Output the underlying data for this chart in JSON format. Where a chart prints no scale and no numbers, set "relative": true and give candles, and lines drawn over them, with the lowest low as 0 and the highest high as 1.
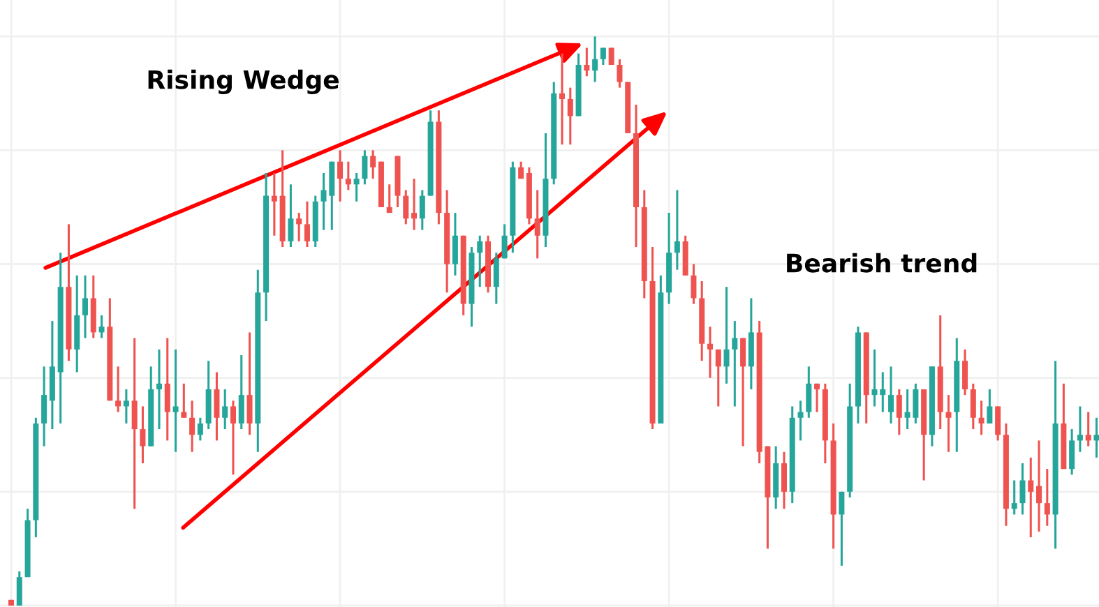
{
  "chart_data": {
    "type": "candlestick",
    "relative": true,
    "grid": true,
    "annotations": [
      "Rising Wedge",
      "Bearish trend"
    ],
    "categories": [
      null,
      null,
      null,
      null,
      null,
      null,
      null,
      null,
      null,
      null,
      null,
      null,
      null,
      null,
      null,
      null,
      null,
      null,
      null,
      null,
      null,
      null,
      null,
      null,
      null,
      null,
      null,
      null,
      null,
      null,
      null,
      null,
      null,
      null,
      null,
      null,
      null,
      null,
      null,
      null,
      null,
      null,
      null,
      null,
      null,
      null,
      null,
      null,
      null,
      null,
      null,
      null,
      null,
      null,
      null,
      null,
      null,
      null,
      null,
      null,
      null,
      null,
      null,
      null,
      null,
      null,
      null,
      null,
      null,
      null,
      null,
      null,
      null,
      null,
      null,
      null,
      null,
      null,
      null,
      null,
      null,
      null,
      null,
      null,
      null,
      null,
      null,
      null,
      null,
      null,
      null,
      null,
      null,
      null,
      null,
      null,
      null,
      null,
      null,
      null,
      null,
      null,
      null,
      null,
      null,
      null,
      null,
      null,
      null,
      null,
      null,
      null,
      null,
      null,
      null,
      null,
      null,
      null,
      null,
      null,
      null,
      null,
      null,
      null,
      null,
      null,
      null,
      null,
      null,
      null,
      null,
      null,
      null
    ],
    "ohlc": [
      [
        0.01,
        0.01,
        0,
        0
      ],
      [
        0,
        0.06,
        0,
        0.05
      ],
      [
        0.05,
        0.17,
        0.05,
        0.15
      ],
      [
        0.15,
        0.33,
        0.12,
        0.32
      ],
      [
        0.32,
        0.42,
        0.28,
        0.37
      ],
      [
        0.36,
        0.5,
        0.31,
        0.42
      ],
      [
        0.41,
        0.62,
        0.32,
        0.56
      ],
      [
        0.56,
        0.67,
        0.43,
        0.45
      ],
      [
        0.45,
        0.58,
        0.41,
        0.51
      ],
      [
        0.51,
        0.58,
        0.47,
        0.54
      ],
      [
        0.54,
        0.58,
        0.47,
        0.48
      ],
      [
        0.48,
        0.51,
        0.47,
        0.49
      ],
      [
        0.49,
        0.54,
        0.36,
        0.36
      ],
      [
        0.36,
        0.42,
        0.34,
        0.35
      ],
      [
        0.35,
        0.38,
        0.32,
        0.36
      ],
      [
        0.36,
        0.47,
        0.17,
        0.31
      ],
      [
        0.31,
        0.35,
        0.25,
        0.28
      ],
      [
        0.28,
        0.42,
        0.28,
        0.38
      ],
      [
        0.38,
        0.45,
        0.31,
        0.39
      ],
      [
        0.39,
        0.47,
        0.29,
        0.34
      ],
      [
        0.34,
        0.45,
        0.27,
        0.35
      ],
      [
        0.34,
        0.39,
        0.33,
        0.33
      ],
      [
        0.33,
        0.36,
        0.27,
        0.3
      ],
      [
        0.3,
        0.33,
        0.29,
        0.32
      ],
      [
        0.32,
        0.43,
        0.31,
        0.38
      ],
      [
        0.38,
        0.41,
        0.29,
        0.33
      ],
      [
        0.33,
        0.38,
        0.31,
        0.35
      ],
      [
        0.35,
        0.36,
        0.23,
        0.32
      ],
      [
        0.32,
        0.44,
        0.31,
        0.37
      ],
      [
        0.37,
        0.48,
        0.3,
        0.32
      ],
      [
        0.32,
        0.59,
        0.27,
        0.55
      ],
      [
        0.55,
        0.76,
        0.5,
        0.72
      ],
      [
        0.72,
        0.76,
        0.65,
        0.71
      ],
      [
        0.72,
        0.8,
        0.63,
        0.64
      ],
      [
        0.64,
        0.74,
        0.63,
        0.68
      ],
      [
        0.68,
        0.69,
        0.64,
        0.67
      ],
      [
        0.67,
        0.71,
        0.63,
        0.64
      ],
      [
        0.64,
        0.72,
        0.63,
        0.71
      ],
      [
        0.71,
        0.76,
        0.66,
        0.73
      ],
      [
        0.72,
        0.78,
        0.66,
        0.78
      ],
      [
        0.78,
        0.8,
        0.71,
        0.75
      ],
      [
        0.75,
        0.78,
        0.73,
        0.74
      ],
      [
        0.74,
        0.76,
        0.71,
        0.75
      ],
      [
        0.75,
        0.8,
        0.74,
        0.79
      ],
      [
        0.79,
        0.8,
        0.75,
        0.77
      ],
      [
        0.78,
        0.78,
        0.7,
        0.7
      ],
      [
        0.7,
        0.74,
        0.69,
        0.69
      ],
      [
        0.79,
        0.79,
        0.7,
        0.72
      ],
      [
        0.72,
        0.73,
        0.67,
        0.68
      ],
      [
        0.69,
        0.75,
        0.66,
        0.68
      ],
      [
        0.68,
        0.73,
        0.66,
        0.72
      ],
      [
        0.72,
        0.87,
        0.72,
        0.85
      ],
      [
        0.85,
        0.87,
        0.67,
        0.69
      ],
      [
        0.69,
        0.73,
        0.55,
        0.6
      ],
      [
        0.6,
        0.69,
        0.58,
        0.65
      ],
      [
        0.65,
        0.65,
        0.51,
        0.53
      ],
      [
        0.53,
        0.63,
        0.49,
        0.62
      ],
      [
        0.62,
        0.65,
        0.56,
        0.64
      ],
      [
        0.64,
        0.65,
        0.55,
        0.56
      ],
      [
        0.56,
        0.62,
        0.53,
        0.61
      ],
      [
        0.61,
        0.67,
        0.61,
        0.65
      ],
      [
        0.65,
        0.78,
        0.62,
        0.77
      ],
      [
        0.77,
        0.78,
        0.75,
        0.75
      ],
      [
        0.76,
        0.77,
        0.67,
        0.68
      ],
      [
        0.68,
        0.73,
        0.61,
        0.65
      ],
      [
        0.65,
        0.83,
        0.63,
        0.75
      ],
      [
        0.75,
        0.92,
        0.74,
        0.9
      ],
      [
        0.9,
        0.97,
        0.81,
        0.89
      ],
      [
        0.89,
        0.91,
        0.81,
        0.86
      ],
      [
        0.86,
        0.97,
        0.86,
        0.95
      ],
      [
        0.95,
        0.98,
        0.93,
        0.94
      ],
      [
        0.94,
        1.0,
        0.92,
        0.96
      ],
      [
        0.96,
        0.98,
        0.95,
        0.98
      ],
      [
        0.98,
        0.98,
        0.95,
        0.95
      ],
      [
        0.95,
        0.96,
        0.91,
        0.92
      ],
      [
        0.92,
        0.92,
        0.83,
        0.83
      ],
      [
        0.83,
        0.88,
        0.63,
        0.7
      ],
      [
        0.7,
        0.73,
        0.54,
        0.57
      ],
      [
        0.57,
        0.63,
        0.31,
        0.32
      ],
      [
        0.32,
        0.58,
        0.32,
        0.55
      ],
      [
        0.55,
        0.69,
        0.53,
        0.62
      ],
      [
        0.62,
        0.73,
        0.59,
        0.64
      ],
      [
        0.64,
        0.65,
        0.58,
        0.58
      ],
      [
        0.58,
        0.6,
        0.53,
        0.54
      ],
      [
        0.54,
        0.57,
        0.43,
        0.46
      ],
      [
        0.46,
        0.49,
        0.4,
        0.45
      ],
      [
        0.45,
        0.45,
        0.35,
        0.42
      ],
      [
        0.42,
        0.56,
        0.39,
        0.45
      ],
      [
        0.45,
        0.5,
        0.35,
        0.47
      ],
      [
        0.47,
        0.47,
        0.28,
        0.42
      ],
      [
        0.42,
        0.54,
        0.38,
        0.48
      ],
      [
        0.48,
        0.5,
        0.25,
        0.27
      ],
      [
        0.28,
        0.28,
        0.1,
        0.19
      ],
      [
        0.19,
        0.28,
        0.17,
        0.25
      ],
      [
        0.25,
        0.27,
        0.17,
        0.2
      ],
      [
        0.2,
        0.35,
        0.18,
        0.33
      ],
      [
        0.33,
        0.36,
        0.29,
        0.34
      ],
      [
        0.34,
        0.42,
        0.33,
        0.39
      ],
      [
        0.39,
        0.39,
        0.34,
        0.38
      ],
      [
        0.38,
        0.39,
        0.25,
        0.29
      ],
      [
        0.29,
        0.32,
        0.1,
        0.16
      ],
      [
        0.16,
        0.2,
        0.07,
        0.2
      ],
      [
        0.2,
        0.39,
        0.19,
        0.35
      ],
      [
        0.35,
        0.49,
        0.32,
        0.48
      ],
      [
        0.48,
        0.48,
        0.32,
        0.37
      ],
      [
        0.37,
        0.45,
        0.35,
        0.38
      ],
      [
        0.37,
        0.41,
        0.34,
        0.38
      ],
      [
        0.34,
        0.42,
        0.32,
        0.37
      ],
      [
        0.37,
        0.38,
        0.3,
        0.33
      ],
      [
        0.33,
        0.38,
        0.31,
        0.34
      ],
      [
        0.33,
        0.39,
        0.32,
        0.38
      ],
      [
        0.38,
        0.38,
        0.22,
        0.3
      ],
      [
        0.3,
        0.42,
        0.28,
        0.42
      ],
      [
        0.42,
        0.51,
        0.31,
        0.34
      ],
      [
        0.34,
        0.37,
        0.27,
        0.33
      ],
      [
        0.34,
        0.47,
        0.27,
        0.43
      ],
      [
        0.43,
        0.45,
        0.37,
        0.38
      ],
      [
        0.38,
        0.39,
        0.31,
        0.33
      ],
      [
        0.33,
        0.36,
        0.3,
        0.32
      ],
      [
        0.32,
        0.38,
        0.32,
        0.35
      ],
      [
        0.35,
        0.35,
        0.29,
        0.3
      ],
      [
        0.3,
        0.32,
        0.14,
        0.17
      ],
      [
        0.17,
        0.22,
        0.16,
        0.18
      ],
      [
        0.18,
        0.25,
        0.16,
        0.22
      ],
      [
        0.22,
        0.26,
        0.12,
        0.2
      ],
      [
        0.21,
        0.29,
        0.13,
        0.18
      ],
      [
        0.18,
        0.24,
        0.14,
        0.16
      ],
      [
        0.16,
        0.43,
        0.1,
        0.32
      ],
      [
        0.32,
        0.39,
        0.24,
        0.24
      ],
      [
        0.24,
        0.31,
        0.23,
        0.29
      ],
      [
        0.29,
        0.35,
        0.27,
        0.3
      ],
      [
        0.3,
        0.34,
        0.28,
        0.29
      ],
      [
        0.29,
        0.33,
        0.26,
        0.3
      ]
    ]
  }
}
